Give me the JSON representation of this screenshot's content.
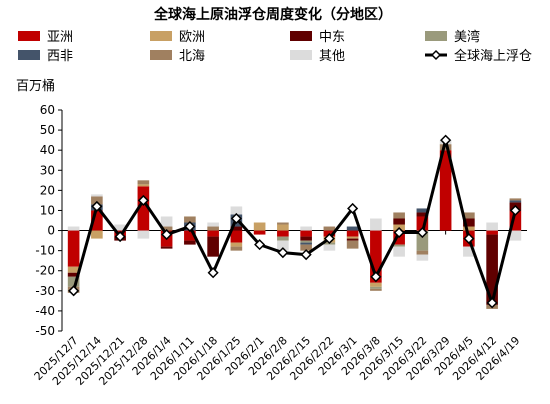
{
  "chart_data": {
    "type": "bar",
    "title": "全球海上原油浮仓周度变化（分地区）",
    "ylabel": "百万桶",
    "ylim": [
      -50,
      60
    ],
    "yticks": [
      60,
      50,
      40,
      30,
      20,
      10,
      0,
      -10,
      -20,
      -30,
      -40,
      -50
    ],
    "categories": [
      "2025/12/7",
      "2025/12/14",
      "2025/12/21",
      "2025/12/28",
      "2026/1/4",
      "2026/1/11",
      "2026/1/18",
      "2026/1/25",
      "2026/2/1",
      "2026/2/8",
      "2026/2/15",
      "2026/2/22",
      "2026/3/1",
      "2026/3/8",
      "2026/3/15",
      "2026/3/22",
      "2026/3/29",
      "2026/4/5",
      "2026/4/12",
      "2026/4/19"
    ],
    "legend_position": "top",
    "series": [
      {
        "name": "亚洲",
        "color": "#c00000",
        "values": [
          -18,
          10,
          -3,
          22,
          -8,
          -5,
          -3,
          -6,
          -2,
          -3,
          -3,
          -3,
          -3,
          -26,
          -7,
          7,
          40,
          -8,
          -2,
          10
        ]
      },
      {
        "name": "欧洲",
        "color": "#c8a064",
        "values": [
          -3,
          -4,
          0,
          1,
          0,
          0,
          0,
          -2,
          4,
          3,
          0,
          -3,
          -1,
          -2,
          3,
          0,
          0,
          2,
          0,
          0
        ]
      },
      {
        "name": "中东",
        "color": "#600000",
        "values": [
          -2,
          0,
          -2,
          0,
          -1,
          -2,
          -10,
          2,
          0,
          0,
          -2,
          0,
          -1,
          0,
          3,
          2,
          0,
          4,
          -35,
          4
        ]
      },
      {
        "name": "美湾",
        "color": "#9a9a7c",
        "values": [
          -5,
          0,
          0,
          0,
          0,
          0,
          0,
          0,
          0,
          -2,
          -1,
          -1,
          0,
          -1,
          -1,
          -10,
          0,
          0,
          0,
          0
        ]
      },
      {
        "name": "西非",
        "color": "#44546a",
        "values": [
          0,
          3,
          0,
          0,
          0,
          4,
          0,
          6,
          0,
          0,
          -1,
          0,
          2,
          0,
          0,
          2,
          0,
          0,
          0,
          1
        ]
      },
      {
        "name": "北海",
        "color": "#a08060",
        "values": [
          -3,
          4,
          0,
          2,
          2,
          3,
          2,
          -2,
          0,
          1,
          -3,
          2,
          -4,
          -1,
          3,
          -2,
          3,
          3,
          -2,
          1
        ]
      },
      {
        "name": "其他",
        "color": "#dcdcdc",
        "values": [
          2,
          1,
          3,
          -4,
          5,
          0,
          2,
          4,
          0,
          -5,
          2,
          -3,
          0,
          6,
          -5,
          -3,
          2,
          -5,
          4,
          -5
        ]
      },
      {
        "name": "全球海上浮仓",
        "color": "#000000",
        "type": "line",
        "values": [
          -30,
          12,
          -3,
          15,
          -2,
          2,
          -21,
          6,
          -7,
          -11,
          -12,
          -4,
          11,
          -23,
          -1,
          -1,
          45,
          -4,
          -36,
          10
        ]
      }
    ]
  }
}
